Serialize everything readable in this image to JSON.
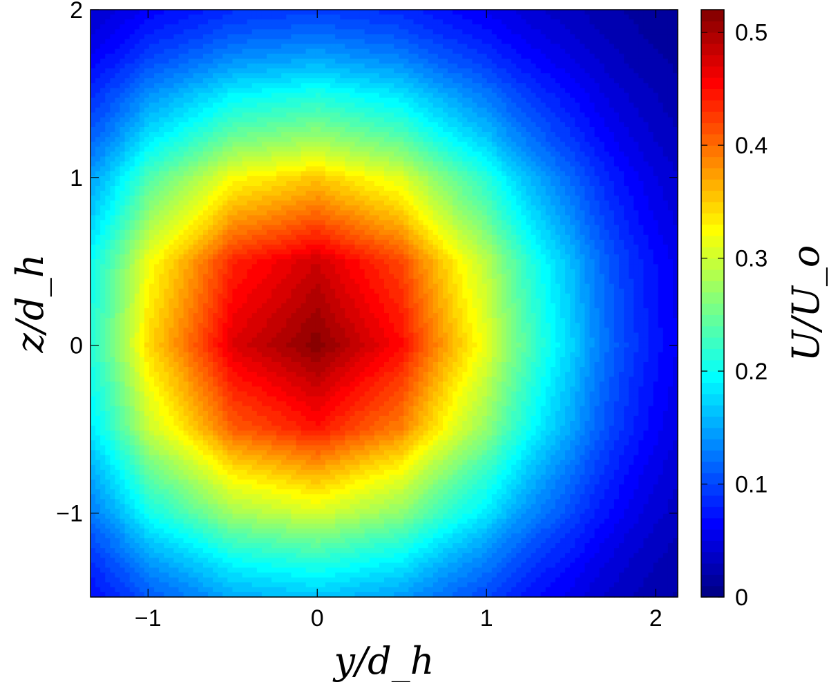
{
  "chart_data": {
    "type": "heatmap",
    "style": "filled contour",
    "colormap": "jet",
    "xlabel": "y/d_h",
    "ylabel": "z/d_h",
    "colorbar_label": "U/U_o",
    "xlim": [
      -1.34,
      2.13
    ],
    "ylim": [
      -1.5,
      2
    ],
    "clim": [
      0,
      0.52
    ],
    "x_ticks": [
      "−1",
      "0",
      "1",
      "2"
    ],
    "x_tick_values": [
      -1,
      0,
      1,
      2
    ],
    "y_ticks": [
      "2",
      "1",
      "0",
      "−1"
    ],
    "y_tick_values": [
      2,
      1,
      0,
      -1
    ],
    "colorbar_ticks": [
      "0.5",
      "0.4",
      "0.3",
      "0.2",
      "0.1",
      "0"
    ],
    "colorbar_tick_values": [
      0.5,
      0.4,
      0.3,
      0.2,
      0.1,
      0
    ],
    "grid": false,
    "x": [
      -1.3,
      -1,
      -0.5,
      0,
      0.5,
      1,
      1.5,
      2.1
    ],
    "y": [
      2,
      1.5,
      1,
      0.5,
      0,
      -0.5,
      -1,
      -1.5
    ],
    "z": [
      [
        0.042,
        0.064,
        0.088,
        0.097,
        0.085,
        0.059,
        0.033,
        0.012
      ],
      [
        0.091,
        0.138,
        0.19,
        0.208,
        0.181,
        0.126,
        0.07,
        0.025
      ],
      [
        0.155,
        0.235,
        0.323,
        0.354,
        0.309,
        0.215,
        0.119,
        0.043
      ],
      [
        0.21,
        0.319,
        0.438,
        0.48,
        0.419,
        0.291,
        0.161,
        0.059
      ],
      [
        0.226,
        0.344,
        0.472,
        0.517,
        0.452,
        0.314,
        0.174,
        0.063
      ],
      [
        0.195,
        0.296,
        0.407,
        0.446,
        0.389,
        0.27,
        0.15,
        0.054
      ],
      [
        0.134,
        0.203,
        0.279,
        0.306,
        0.267,
        0.185,
        0.103,
        0.037
      ],
      [
        0.073,
        0.111,
        0.152,
        0.167,
        0.146,
        0.101,
        0.056,
        0.02
      ]
    ]
  }
}
